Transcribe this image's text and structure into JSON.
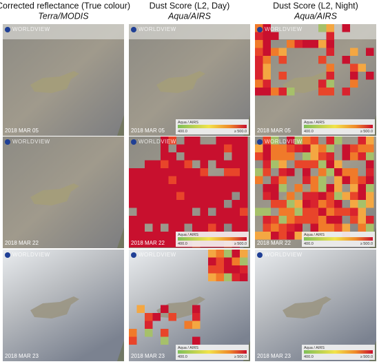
{
  "headers": [
    {
      "title": "Corrected reflectance (True colour)",
      "subtitle": "Terra/MODIS"
    },
    {
      "title": "Dust Score (L2, Day)",
      "subtitle": "Aqua/AIRS"
    },
    {
      "title": "Dust Score (L2, Night)",
      "subtitle": "Aqua/AIRS"
    }
  ],
  "rows": [
    {
      "date": "2018 MAR 05"
    },
    {
      "date": "2018 MAR 22"
    },
    {
      "date": "2018 MAR 23"
    }
  ],
  "watermark": "WORLDVIEW",
  "legend": {
    "label": "Aqua / AIRS",
    "min": "400.0",
    "max": "≥ 500.0"
  }
}
